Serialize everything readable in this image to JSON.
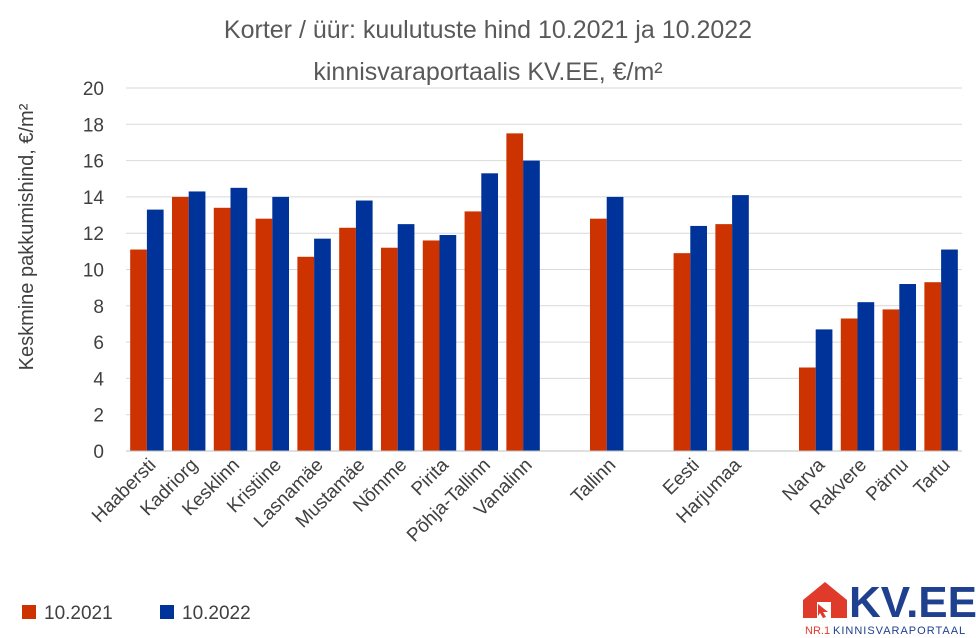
{
  "chart_data": {
    "type": "bar",
    "title": [
      "Korter / üür: kuulutuste hind 10.2021 ja 10.2022",
      "kinnisvaraportaalis KV.EE, €/m²"
    ],
    "ylabel": "Keskmine pakkumishind, €/m²",
    "xlabel": "",
    "ylim": [
      0,
      20
    ],
    "yticks": [
      0,
      2,
      4,
      6,
      8,
      10,
      12,
      14,
      16,
      18,
      20
    ],
    "grid": true,
    "legend_position": "bottom-left",
    "categories": [
      "Haabersti",
      "Kadriorg",
      "Kesklinn",
      "Kristiine",
      "Lasnamäe",
      "Mustamäe",
      "Nõmme",
      "Pirita",
      "Põhja-Tallinn",
      "Vanalinn",
      "",
      "Tallinn",
      "",
      "Eesti",
      "Harjumaa",
      "",
      "Narva",
      "Rakvere",
      "Pärnu",
      "Tartu"
    ],
    "series": [
      {
        "name": "10.2021",
        "color": "#cc3300",
        "values": [
          11.1,
          14.0,
          13.4,
          12.8,
          10.7,
          12.3,
          11.2,
          11.6,
          13.2,
          17.5,
          null,
          12.8,
          null,
          10.9,
          12.5,
          null,
          4.6,
          7.3,
          7.8,
          9.3
        ]
      },
      {
        "name": "10.2022",
        "color": "#003399",
        "values": [
          13.3,
          14.3,
          14.5,
          14.0,
          11.7,
          13.8,
          12.5,
          11.9,
          15.3,
          16.0,
          null,
          14.0,
          null,
          12.4,
          14.1,
          null,
          6.7,
          8.2,
          9.2,
          11.1
        ]
      }
    ]
  },
  "logo": {
    "text": "KV.EE",
    "tagline_prefix": "NR.1",
    "tagline": "KINNISVARAPORTAAL",
    "colors": {
      "red": "#e03a2b",
      "blue": "#1f3f8f"
    }
  }
}
